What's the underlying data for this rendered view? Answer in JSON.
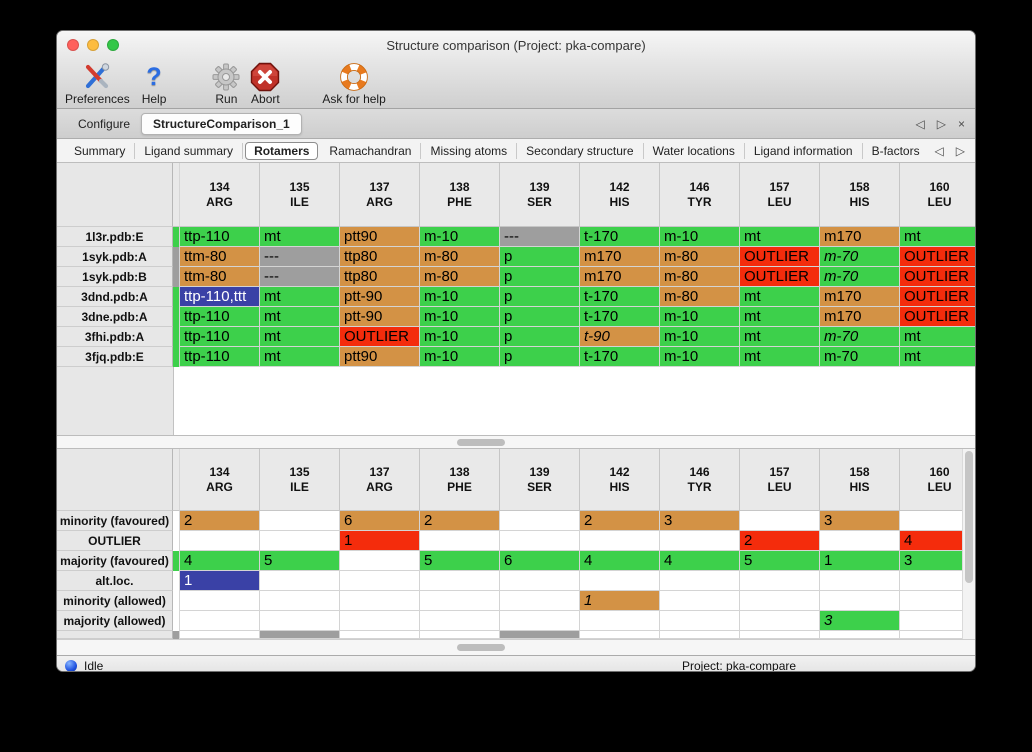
{
  "window": {
    "title": "Structure comparison (Project: pka-compare)"
  },
  "traffic_lights": [
    "close",
    "minimize",
    "zoom"
  ],
  "toolbar": {
    "items": [
      {
        "label": "Preferences",
        "icon": "preferences-tools-icon"
      },
      {
        "label": "Help",
        "icon": "help-icon"
      },
      {
        "label": "Run",
        "icon": "run-gear-icon"
      },
      {
        "label": "Abort",
        "icon": "abort-icon"
      },
      {
        "label": "Ask for help",
        "icon": "lifebuoy-icon"
      }
    ]
  },
  "tabbar": {
    "tabs": [
      {
        "label": "Configure",
        "selected": false
      },
      {
        "label": "StructureComparison_1",
        "selected": true
      }
    ],
    "controls": [
      {
        "name": "prev-tab-icon"
      },
      {
        "name": "next-tab-icon"
      },
      {
        "name": "close-tab-icon"
      }
    ]
  },
  "subtabbar": {
    "tabs": [
      "Summary",
      "Ligand summary",
      "Rotamers",
      "Ramachandran",
      "Missing atoms",
      "Secondary structure",
      "Water locations",
      "Ligand information",
      "B-factors"
    ],
    "selected": "Rotamers",
    "controls": [
      {
        "name": "prev-subtab-icon"
      },
      {
        "name": "next-subtab-icon"
      }
    ]
  },
  "palette": {
    "green": "#3dd04b",
    "orange": "#d39245",
    "red": "#f42c0c",
    "gray": "#9e9e9e",
    "blue": "#3a41a6",
    "selected_text": "#ffffff"
  },
  "columns": [
    {
      "num": "134",
      "res": "ARG"
    },
    {
      "num": "135",
      "res": "ILE"
    },
    {
      "num": "137",
      "res": "ARG"
    },
    {
      "num": "138",
      "res": "PHE"
    },
    {
      "num": "139",
      "res": "SER"
    },
    {
      "num": "142",
      "res": "HIS"
    },
    {
      "num": "146",
      "res": "TYR"
    },
    {
      "num": "157",
      "res": "LEU"
    },
    {
      "num": "158",
      "res": "HIS"
    },
    {
      "num": "160",
      "res": "LEU"
    }
  ],
  "structures_table": {
    "rows": [
      {
        "label": "1l3r.pdb:E",
        "edge": "green",
        "cells": [
          {
            "t": "ttp-110",
            "c": "green"
          },
          {
            "t": "mt",
            "c": "green"
          },
          {
            "t": "ptt90",
            "c": "orange"
          },
          {
            "t": "m-10",
            "c": "green"
          },
          {
            "t": "---",
            "c": "gray"
          },
          {
            "t": "t-170",
            "c": "green"
          },
          {
            "t": "m-10",
            "c": "green"
          },
          {
            "t": "mt",
            "c": "green"
          },
          {
            "t": "m170",
            "c": "orange"
          },
          {
            "t": "mt",
            "c": "green"
          }
        ]
      },
      {
        "label": "1syk.pdb:A",
        "edge": "gray",
        "cells": [
          {
            "t": "ttm-80",
            "c": "orange"
          },
          {
            "t": "---",
            "c": "gray"
          },
          {
            "t": "ttp80",
            "c": "orange"
          },
          {
            "t": "m-80",
            "c": "orange"
          },
          {
            "t": "p",
            "c": "green"
          },
          {
            "t": "m170",
            "c": "orange"
          },
          {
            "t": "m-80",
            "c": "orange"
          },
          {
            "t": "OUTLIER",
            "c": "red"
          },
          {
            "t": "m-70",
            "c": "green",
            "i": true
          },
          {
            "t": "OUTLIER",
            "c": "red"
          }
        ]
      },
      {
        "label": "1syk.pdb:B",
        "edge": "gray",
        "cells": [
          {
            "t": "ttm-80",
            "c": "orange"
          },
          {
            "t": "---",
            "c": "gray"
          },
          {
            "t": "ttp80",
            "c": "orange"
          },
          {
            "t": "m-80",
            "c": "orange"
          },
          {
            "t": "p",
            "c": "green"
          },
          {
            "t": "m170",
            "c": "orange"
          },
          {
            "t": "m-80",
            "c": "orange"
          },
          {
            "t": "OUTLIER",
            "c": "red"
          },
          {
            "t": "m-70",
            "c": "green",
            "i": true
          },
          {
            "t": "OUTLIER",
            "c": "red"
          }
        ]
      },
      {
        "label": "3dnd.pdb:A",
        "edge": "green",
        "cells": [
          {
            "t": "ttp-110,ttt",
            "c": "blue"
          },
          {
            "t": "mt",
            "c": "green"
          },
          {
            "t": "ptt-90",
            "c": "orange"
          },
          {
            "t": "m-10",
            "c": "green"
          },
          {
            "t": "p",
            "c": "green"
          },
          {
            "t": "t-170",
            "c": "green"
          },
          {
            "t": "m-80",
            "c": "orange"
          },
          {
            "t": "mt",
            "c": "green"
          },
          {
            "t": "m170",
            "c": "orange"
          },
          {
            "t": "OUTLIER",
            "c": "red"
          }
        ]
      },
      {
        "label": "3dne.pdb:A",
        "edge": "green",
        "cells": [
          {
            "t": "ttp-110",
            "c": "green"
          },
          {
            "t": "mt",
            "c": "green"
          },
          {
            "t": "ptt-90",
            "c": "orange"
          },
          {
            "t": "m-10",
            "c": "green"
          },
          {
            "t": "p",
            "c": "green"
          },
          {
            "t": "t-170",
            "c": "green"
          },
          {
            "t": "m-10",
            "c": "green"
          },
          {
            "t": "mt",
            "c": "green"
          },
          {
            "t": "m170",
            "c": "orange"
          },
          {
            "t": "OUTLIER",
            "c": "red"
          }
        ]
      },
      {
        "label": "3fhi.pdb:A",
        "edge": "green",
        "cells": [
          {
            "t": "ttp-110",
            "c": "green"
          },
          {
            "t": "mt",
            "c": "green"
          },
          {
            "t": "OUTLIER",
            "c": "red"
          },
          {
            "t": "m-10",
            "c": "green"
          },
          {
            "t": "p",
            "c": "green"
          },
          {
            "t": "t-90",
            "c": "orange",
            "i": true
          },
          {
            "t": "m-10",
            "c": "green"
          },
          {
            "t": "mt",
            "c": "green"
          },
          {
            "t": "m-70",
            "c": "green",
            "i": true
          },
          {
            "t": "mt",
            "c": "green"
          }
        ]
      },
      {
        "label": "3fjq.pdb:E",
        "edge": "green",
        "cells": [
          {
            "t": "ttp-110",
            "c": "green"
          },
          {
            "t": "mt",
            "c": "green"
          },
          {
            "t": "ptt90",
            "c": "orange"
          },
          {
            "t": "m-10",
            "c": "green"
          },
          {
            "t": "p",
            "c": "green"
          },
          {
            "t": "t-170",
            "c": "green"
          },
          {
            "t": "m-10",
            "c": "green"
          },
          {
            "t": "mt",
            "c": "green"
          },
          {
            "t": "m-70",
            "c": "green"
          },
          {
            "t": "mt",
            "c": "green"
          }
        ]
      }
    ]
  },
  "counts_table": {
    "rows": [
      {
        "label": "minority (favoured)",
        "edge": "",
        "cells": [
          {
            "t": "2",
            "c": "orange"
          },
          {
            "t": "",
            "c": ""
          },
          {
            "t": "6",
            "c": "orange"
          },
          {
            "t": "2",
            "c": "orange"
          },
          {
            "t": "",
            "c": ""
          },
          {
            "t": "2",
            "c": "orange"
          },
          {
            "t": "3",
            "c": "orange"
          },
          {
            "t": "",
            "c": ""
          },
          {
            "t": "3",
            "c": "orange"
          },
          {
            "t": "",
            "c": ""
          }
        ]
      },
      {
        "label": "OUTLIER",
        "edge": "",
        "cells": [
          {
            "t": "",
            "c": ""
          },
          {
            "t": "",
            "c": ""
          },
          {
            "t": "1",
            "c": "red"
          },
          {
            "t": "",
            "c": ""
          },
          {
            "t": "",
            "c": ""
          },
          {
            "t": "",
            "c": ""
          },
          {
            "t": "",
            "c": ""
          },
          {
            "t": "2",
            "c": "red"
          },
          {
            "t": "",
            "c": ""
          },
          {
            "t": "4",
            "c": "red"
          }
        ]
      },
      {
        "label": "majority (favoured)",
        "edge": "green",
        "cells": [
          {
            "t": "4",
            "c": "green"
          },
          {
            "t": "5",
            "c": "green"
          },
          {
            "t": "",
            "c": ""
          },
          {
            "t": "5",
            "c": "green"
          },
          {
            "t": "6",
            "c": "green"
          },
          {
            "t": "4",
            "c": "green"
          },
          {
            "t": "4",
            "c": "green"
          },
          {
            "t": "5",
            "c": "green"
          },
          {
            "t": "1",
            "c": "green"
          },
          {
            "t": "3",
            "c": "green"
          }
        ]
      },
      {
        "label": "alt.loc.",
        "edge": "",
        "cells": [
          {
            "t": "1",
            "c": "blue"
          },
          {
            "t": "",
            "c": ""
          },
          {
            "t": "",
            "c": ""
          },
          {
            "t": "",
            "c": ""
          },
          {
            "t": "",
            "c": ""
          },
          {
            "t": "",
            "c": ""
          },
          {
            "t": "",
            "c": ""
          },
          {
            "t": "",
            "c": ""
          },
          {
            "t": "",
            "c": ""
          },
          {
            "t": "",
            "c": ""
          }
        ]
      },
      {
        "label": "minority (allowed)",
        "edge": "",
        "cells": [
          {
            "t": "",
            "c": ""
          },
          {
            "t": "",
            "c": ""
          },
          {
            "t": "",
            "c": ""
          },
          {
            "t": "",
            "c": ""
          },
          {
            "t": "",
            "c": ""
          },
          {
            "t": "1",
            "c": "orange",
            "i": true
          },
          {
            "t": "",
            "c": ""
          },
          {
            "t": "",
            "c": ""
          },
          {
            "t": "",
            "c": ""
          },
          {
            "t": "",
            "c": ""
          }
        ]
      },
      {
        "label": "majority (allowed)",
        "edge": "",
        "cells": [
          {
            "t": "",
            "c": ""
          },
          {
            "t": "",
            "c": ""
          },
          {
            "t": "",
            "c": ""
          },
          {
            "t": "",
            "c": ""
          },
          {
            "t": "",
            "c": ""
          },
          {
            "t": "",
            "c": ""
          },
          {
            "t": "",
            "c": ""
          },
          {
            "t": "",
            "c": ""
          },
          {
            "t": "3",
            "c": "green",
            "i": true
          },
          {
            "t": "",
            "c": ""
          }
        ]
      }
    ],
    "partial_row": {
      "label": "",
      "edge": "gray",
      "cells": [
        {
          "t": "",
          "c": ""
        },
        {
          "t": "",
          "c": "gray"
        },
        {
          "t": "",
          "c": ""
        },
        {
          "t": "",
          "c": ""
        },
        {
          "t": "",
          "c": "gray"
        },
        {
          "t": "",
          "c": ""
        },
        {
          "t": "",
          "c": ""
        },
        {
          "t": "",
          "c": ""
        },
        {
          "t": "",
          "c": ""
        },
        {
          "t": "",
          "c": ""
        }
      ]
    }
  },
  "statusbar": {
    "status": "Idle",
    "status_icon": "idle-sphere-icon",
    "project": "Project: pka-compare"
  }
}
